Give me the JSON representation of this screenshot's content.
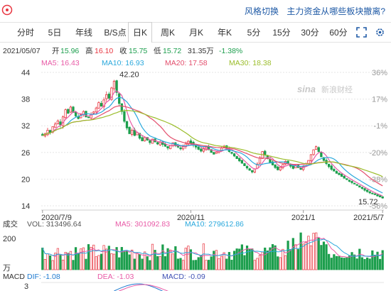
{
  "topbar": {
    "links": [
      "风格切换",
      "主力资金从哪些板块撤离?"
    ]
  },
  "tabs": [
    "分时",
    "5日",
    "年线",
    "B/S点",
    "日K",
    "周K",
    "月K",
    "年K",
    "5分",
    "15分",
    "30分",
    "60分"
  ],
  "active_tab": "日K",
  "ohlc_bar": {
    "date": "2021/05/07",
    "open_label": "开",
    "open": "15.96",
    "high_label": "高",
    "high": "16.10",
    "close_label": "收",
    "close": "15.75",
    "low_label": "低",
    "low": "15.72",
    "amount": "31.35万",
    "change": "-1.38%"
  },
  "ma_legend": [
    {
      "label": "MA5: 16.43",
      "color": "#e85aa6"
    },
    {
      "label": "MA10: 16.93",
      "color": "#29a8dc"
    },
    {
      "label": "MA20: 17.58",
      "color": "#e34f6d"
    },
    {
      "label": "MA30: 18.38",
      "color": "#9bbd2b"
    }
  ],
  "watermark": "新浪财经",
  "price_axis": {
    "left_ticks": [
      "44",
      "38",
      "32",
      "26",
      "20",
      "14"
    ],
    "right_ticks": [
      "36%",
      "17%",
      "-1%",
      "-20%",
      "-38%",
      "-56%"
    ]
  },
  "x_ticks": [
    "2020/7/9",
    "2020/11",
    "2021/1",
    "2021/5/7"
  ],
  "annotations": {
    "high": "42.20",
    "low": "15.72"
  },
  "volume": {
    "title": "成交",
    "vol_label": "VOL: 313496.64",
    "ma5_label": "MA5: 301092.83",
    "ma10_label": "MA10: 279612.86",
    "axis_top": "200",
    "axis_unit": "万",
    "colors": {
      "vol": "#555555",
      "ma5": "#e85aa6",
      "ma10": "#29a8dc"
    }
  },
  "macd": {
    "title": "MACD",
    "dif_label": "DIF: -1.08",
    "dea_label": "DEA: -1.03",
    "macd_label": "MACD: -0.09",
    "axis_top": "3",
    "colors": {
      "dif": "#1f7bd0",
      "dea": "#e85aa6",
      "macd": "#3f51b5"
    }
  },
  "chart_data": {
    "type": "candlestick",
    "title": "",
    "date_range": [
      "2020/7/9",
      "2021/5/7"
    ],
    "ylim": [
      14,
      44
    ],
    "price_high": 42.2,
    "price_low": 15.72,
    "last_close": 15.75,
    "ma_last": {
      "MA5": 16.43,
      "MA10": 16.93,
      "MA20": 17.58,
      "MA30": 18.38
    },
    "colors": {
      "up": "#e8343f",
      "down": "#1c9e4d"
    },
    "series_close": [
      29.8,
      30.2,
      31.0,
      30.5,
      31.8,
      32.4,
      33.1,
      32.2,
      34.0,
      35.6,
      34.8,
      36.2,
      35.0,
      34.2,
      33.6,
      34.5,
      35.2,
      34.0,
      33.8,
      34.6,
      35.1,
      36.0,
      37.2,
      36.4,
      37.8,
      39.0,
      38.2,
      40.5,
      42.0,
      39.5,
      37.0,
      35.2,
      33.0,
      31.5,
      30.2,
      31.0,
      29.8,
      30.5,
      29.2,
      28.6,
      29.4,
      28.8,
      28.2,
      29.0,
      28.4,
      27.9,
      28.3,
      27.8,
      27.4,
      27.0,
      27.6,
      28.2,
      27.5,
      27.2,
      26.8,
      27.3,
      27.9,
      28.5,
      28.1,
      27.6,
      27.2,
      26.7,
      26.3,
      26.8,
      27.2,
      26.6,
      26.0,
      25.6,
      26.1,
      26.5,
      27.0,
      27.4,
      26.9,
      26.2,
      25.8,
      25.2,
      24.6,
      24.1,
      23.6,
      23.0,
      22.5,
      22.0,
      21.6,
      22.3,
      23.4,
      24.8,
      26.2,
      25.4,
      24.6,
      23.8,
      23.2,
      22.6,
      22.1,
      22.7,
      23.3,
      24.0,
      23.5,
      22.9,
      22.4,
      23.0,
      22.6,
      22.2,
      22.8,
      23.5,
      24.2,
      25.5,
      26.6,
      27.3,
      26.2,
      25.0,
      24.2,
      23.5,
      22.8,
      22.2,
      21.8,
      21.3,
      21.0,
      20.6,
      20.2,
      19.9,
      19.5,
      19.2,
      18.9,
      18.6,
      18.2,
      17.9,
      17.5,
      17.2,
      16.9,
      16.7,
      16.5,
      16.2,
      16.0,
      15.75
    ],
    "x_tick_index": [
      0,
      58,
      102,
      133
    ]
  }
}
